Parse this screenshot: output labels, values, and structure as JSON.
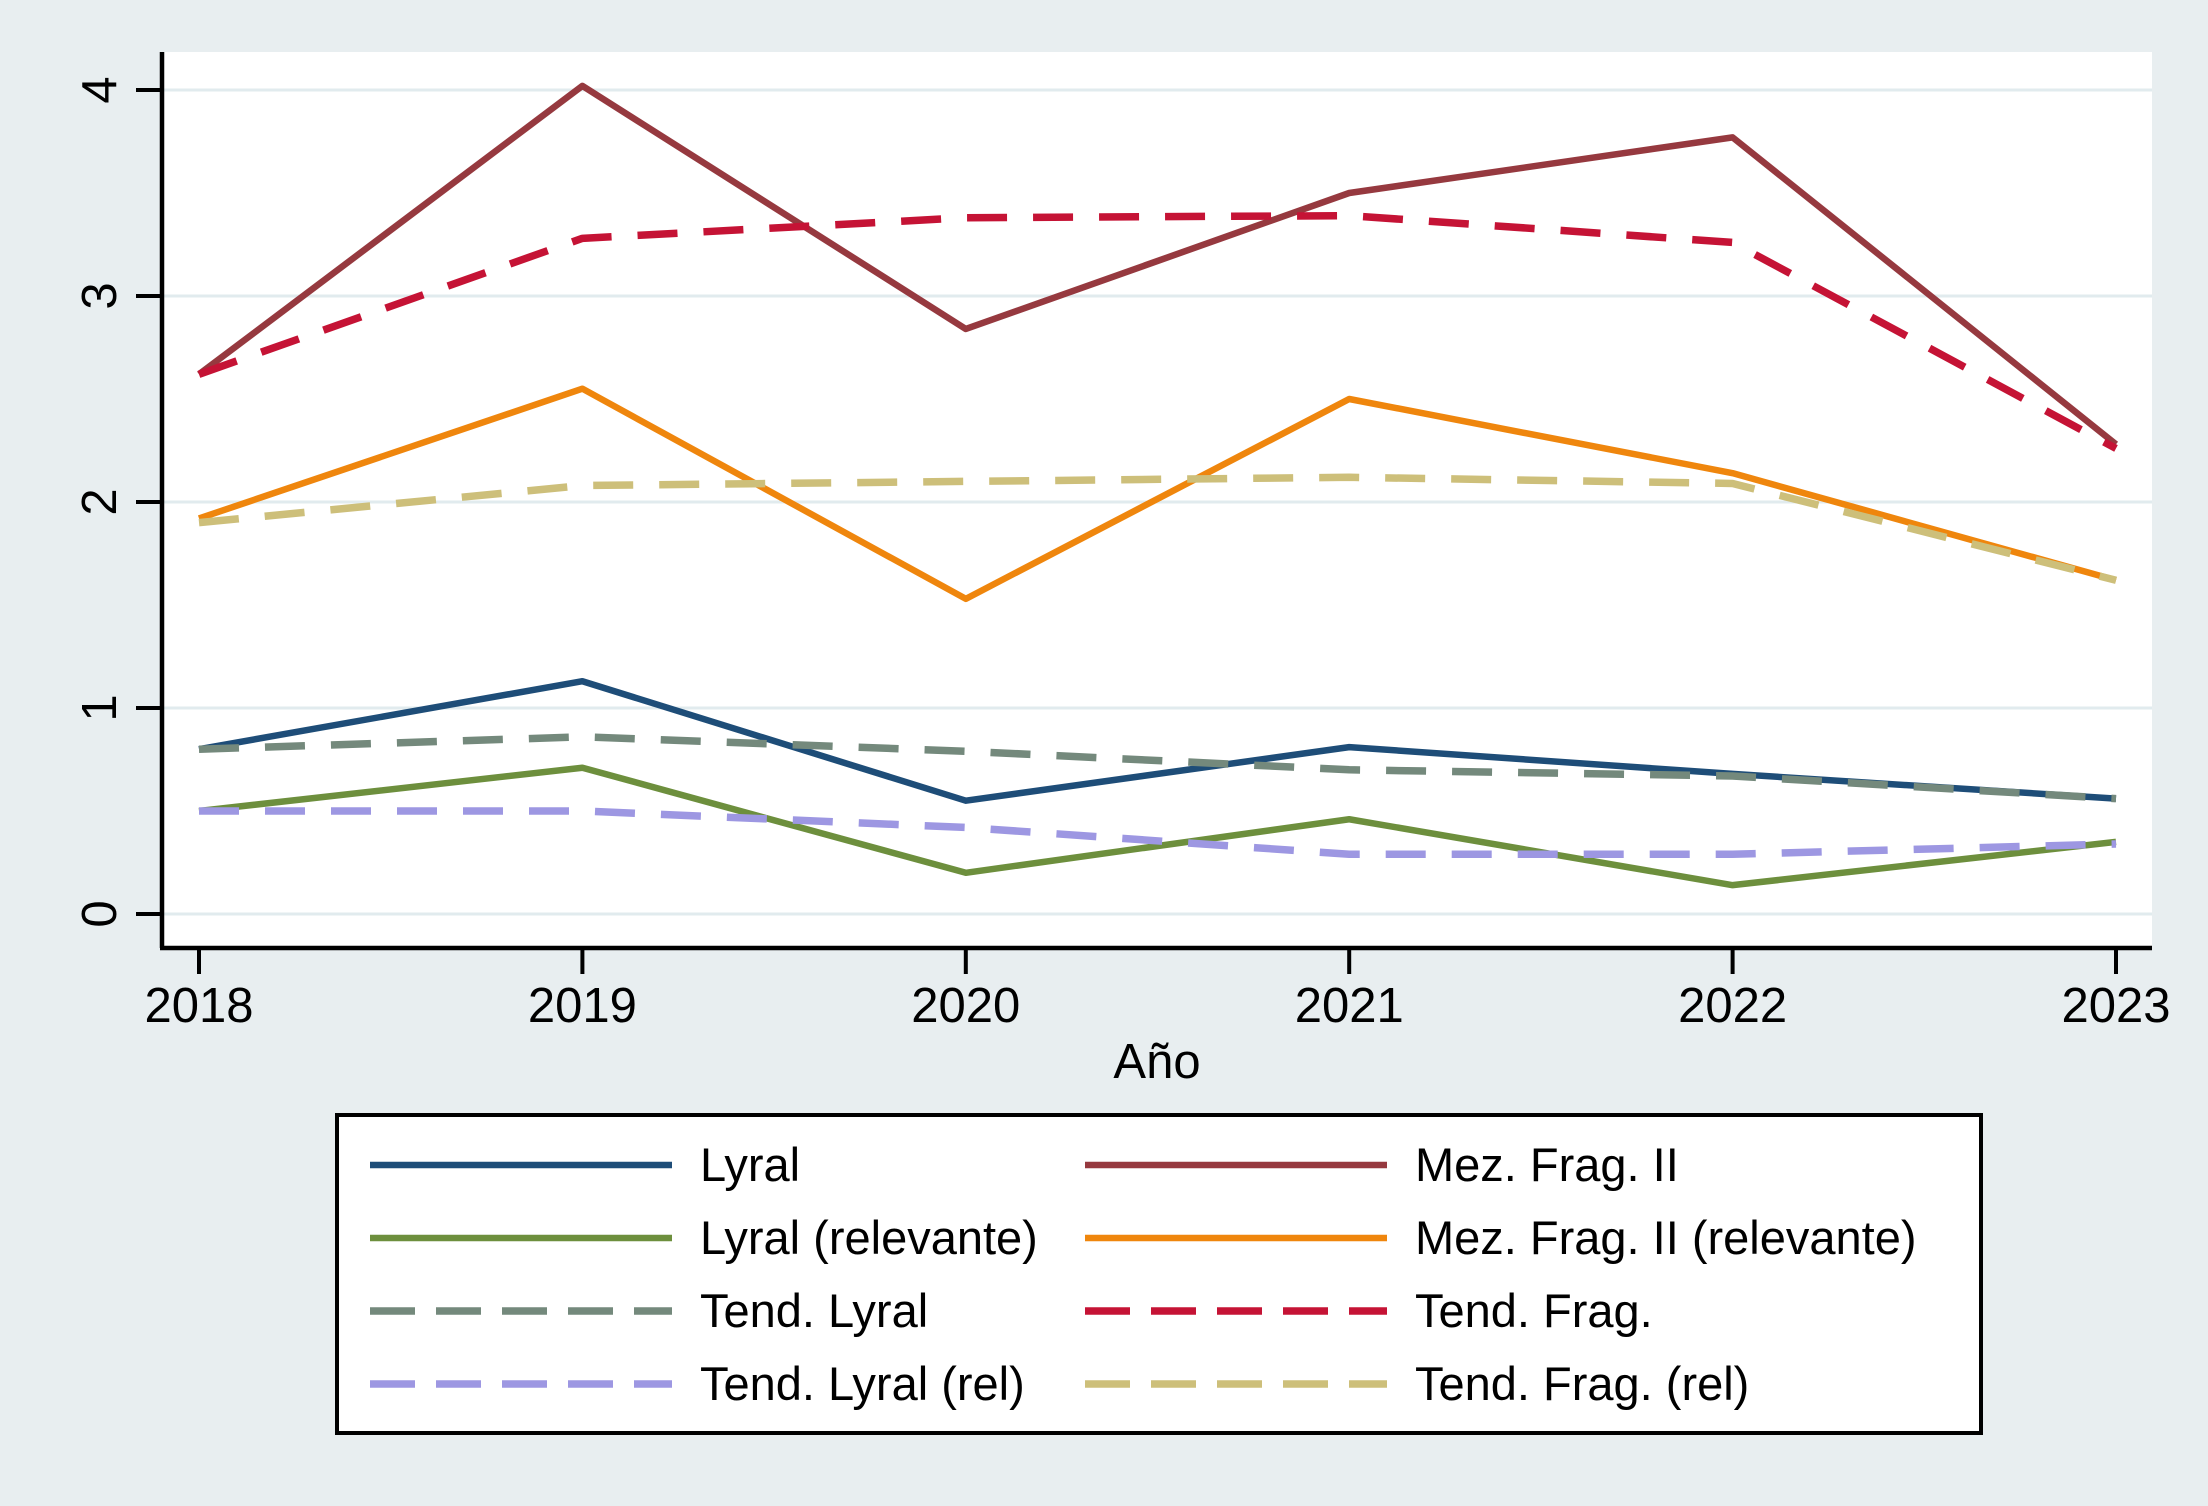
{
  "figure": {
    "xlabel": "Año",
    "background_color": "#e8eef0",
    "plot_background_color": "#ffffff",
    "grid_color": "#e1ebee",
    "axis_color": "#000000",
    "legend_border_color": "#000000",
    "legend_background_color": "#ffffff"
  },
  "chart_data": {
    "type": "line",
    "x": [
      2018,
      2019,
      2020,
      2021,
      2022,
      2023
    ],
    "xlabel": "Año",
    "ylabel": "",
    "ylim": [
      0,
      4
    ],
    "yticks": [
      0,
      1,
      2,
      3,
      4
    ],
    "grid": "horizontal-only",
    "legend_position": "bottom",
    "legend_columns": 2,
    "legend_column_order": [
      [
        0,
        1,
        2,
        3
      ],
      [
        4,
        5,
        6,
        7
      ]
    ],
    "series": [
      {
        "name": "Lyral",
        "color": "#1e4d78",
        "style": "solid",
        "values": [
          0.8,
          1.13,
          0.55,
          0.81,
          0.68,
          0.56
        ]
      },
      {
        "name": "Lyral (relevante)",
        "color": "#6d8f3d",
        "style": "solid",
        "values": [
          0.5,
          0.71,
          0.2,
          0.46,
          0.14,
          0.35
        ]
      },
      {
        "name": "Tend. Lyral",
        "color": "#74897c",
        "style": "dashed",
        "values": [
          0.8,
          0.86,
          0.79,
          0.7,
          0.67,
          0.56
        ]
      },
      {
        "name": "Tend. Lyral (rel)",
        "color": "#9d97e2",
        "style": "dashed",
        "values": [
          0.5,
          0.5,
          0.42,
          0.29,
          0.29,
          0.34
        ]
      },
      {
        "name": "Mez. Frag. II",
        "color": "#96393f",
        "style": "solid",
        "values": [
          2.62,
          4.02,
          2.84,
          3.5,
          3.77,
          2.28
        ]
      },
      {
        "name": "Mez. Frag. II (relevante)",
        "color": "#ef860d",
        "style": "solid",
        "values": [
          1.92,
          2.55,
          1.53,
          2.5,
          2.14,
          1.62
        ]
      },
      {
        "name": "Tend. Frag.",
        "color": "#c51335",
        "style": "dashed",
        "values": [
          2.62,
          3.28,
          3.38,
          3.39,
          3.26,
          2.26
        ]
      },
      {
        "name": "Tend. Frag. (rel)",
        "color": "#cdbf7a",
        "style": "dashed",
        "values": [
          1.9,
          2.08,
          2.1,
          2.12,
          2.09,
          1.62
        ]
      }
    ]
  }
}
